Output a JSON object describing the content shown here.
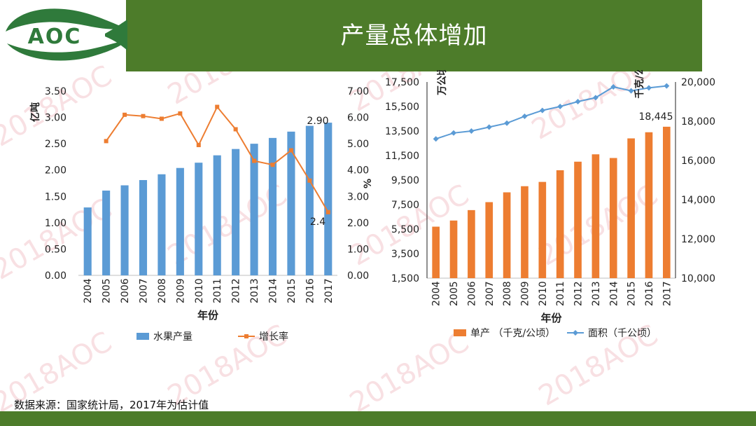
{
  "header": {
    "title": "产量总体增加",
    "logo_text": "AOC"
  },
  "watermark": {
    "text": "2018AOC"
  },
  "footer": {
    "source": "数据来源：国家统计局，2017年为估计值"
  },
  "colors": {
    "header_green": "#4d7c2a",
    "bar_blue": "#5b9bd5",
    "line_orange": "#ed7d31",
    "bar_orange": "#ed7d31",
    "line_blue": "#5b9bd5"
  },
  "chart_data": [
    {
      "type": "bar+line",
      "categories": [
        "2004",
        "2005",
        "2006",
        "2007",
        "2008",
        "2009",
        "2010",
        "2011",
        "2012",
        "2013",
        "2014",
        "2015",
        "2016",
        "2017"
      ],
      "series": [
        {
          "name": "水果产量",
          "kind": "bar",
          "axis": "left",
          "values": [
            1.29,
            1.61,
            1.71,
            1.81,
            1.92,
            2.04,
            2.14,
            2.28,
            2.4,
            2.5,
            2.61,
            2.73,
            2.84,
            2.9
          ]
        },
        {
          "name": "增长率",
          "kind": "line",
          "axis": "right",
          "values": [
            null,
            5.1,
            6.1,
            6.05,
            5.95,
            6.15,
            4.95,
            6.4,
            5.55,
            4.35,
            4.2,
            4.75,
            3.6,
            2.4
          ]
        }
      ],
      "annotations": [
        "2.90",
        "2.4"
      ],
      "xlabel": "年份",
      "ylabel_left": "亿吨",
      "ylabel_right": "%",
      "ylim_left": [
        0,
        3.5
      ],
      "ylim_right": [
        0,
        7
      ],
      "yticks_left": [
        "0.00",
        "0.50",
        "1.00",
        "1.50",
        "2.00",
        "2.50",
        "3.00",
        "3.50"
      ],
      "yticks_right": [
        "0.00",
        "1.00",
        "2.00",
        "3.00",
        "4.00",
        "5.00",
        "6.00",
        "7.00"
      ],
      "legend_position": "bottom"
    },
    {
      "type": "bar+line",
      "categories": [
        "2004",
        "2005",
        "2006",
        "2007",
        "2008",
        "2009",
        "2010",
        "2011",
        "2012",
        "2013",
        "2014",
        "2015",
        "2016",
        "2017"
      ],
      "series": [
        {
          "name": "单产 （千克/公顷）",
          "kind": "bar",
          "axis": "left",
          "values": [
            5700,
            6200,
            7050,
            7700,
            8500,
            9000,
            9350,
            10300,
            11000,
            11600,
            11300,
            12900,
            13400,
            13850
          ]
        },
        {
          "name": "面积（千公顷）",
          "kind": "line",
          "axis": "right",
          "values": [
            17100,
            17400,
            17500,
            17700,
            17900,
            18250,
            18550,
            18750,
            19000,
            19200,
            19750,
            19550,
            19700,
            19800
          ]
        }
      ],
      "annotations": [
        "18,445"
      ],
      "xlabel": "年份",
      "ylabel_left": "万公顷",
      "ylabel_right": "千克/公顷",
      "ylim_left": [
        1500,
        17500
      ],
      "ylim_right": [
        10000,
        20000
      ],
      "yticks_left": [
        "1,500",
        "3,500",
        "5,500",
        "7,500",
        "9,500",
        "11,500",
        "13,500",
        "15,500",
        "17,500"
      ],
      "yticks_right": [
        "10,000",
        "12,000",
        "14,000",
        "16,000",
        "18,000",
        "20,000"
      ],
      "legend_position": "bottom"
    }
  ]
}
